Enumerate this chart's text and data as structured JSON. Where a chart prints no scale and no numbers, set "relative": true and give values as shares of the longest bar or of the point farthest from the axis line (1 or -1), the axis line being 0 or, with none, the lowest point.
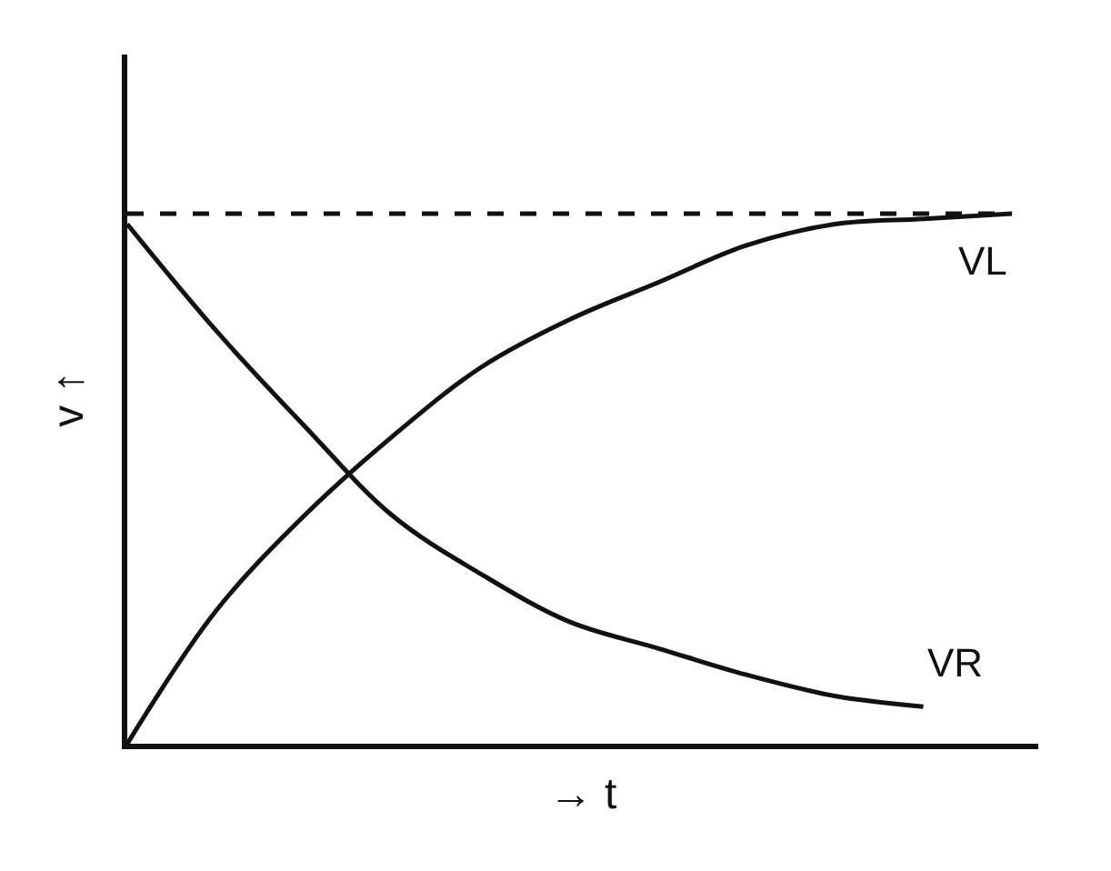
{
  "chart_data": {
    "type": "line",
    "relative": true,
    "xlabel": "→ t",
    "ylabel": "v ↑",
    "categories": [
      null,
      null,
      null,
      null,
      null,
      null,
      null,
      null,
      null,
      null,
      null
    ],
    "series": [
      {
        "name": "VL",
        "color": "#111111",
        "values": [
          0,
          0.25,
          0.43,
          0.58,
          0.71,
          0.8,
          0.87,
          0.94,
          0.98,
          0.99,
          1.0
        ]
      },
      {
        "name": "VR",
        "color": "#111111",
        "values": [
          0.98,
          0.78,
          0.6,
          0.43,
          0.32,
          0.23,
          0.18,
          0.13,
          0.09,
          0.07,
          null
        ]
      }
    ],
    "ref_lines": [
      {
        "axis": "y",
        "value": 1,
        "color": "#111111",
        "line_style": "dashed"
      }
    ],
    "legend": false,
    "marker": "none",
    "line_style": "solid"
  }
}
